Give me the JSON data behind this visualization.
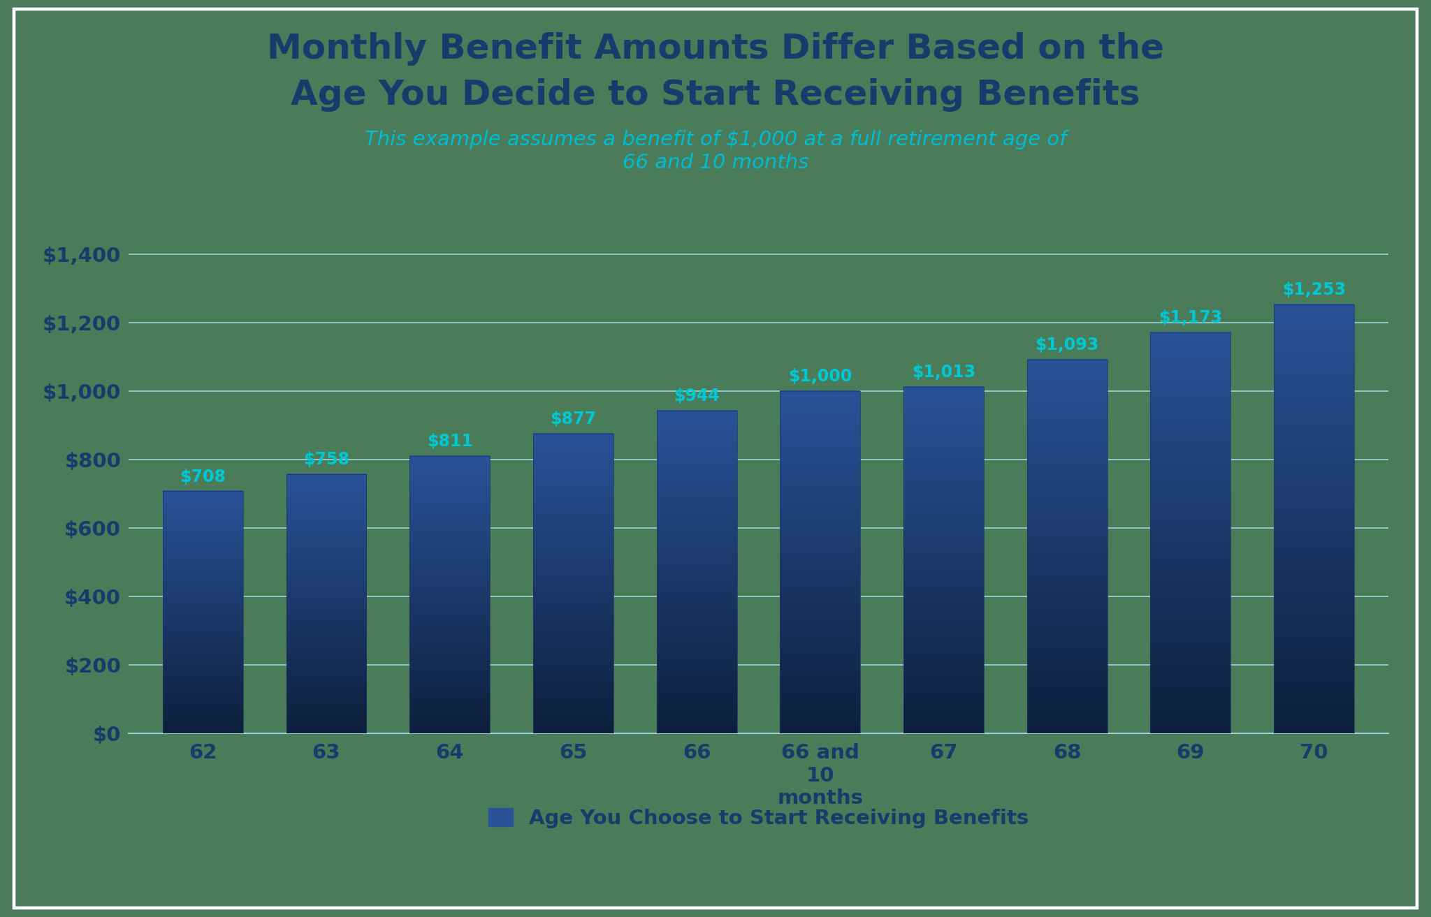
{
  "title_line1": "Monthly Benefit Amounts Differ Based on the",
  "title_line2": "Age You Decide to Start Receiving Benefits",
  "subtitle": "This example assumes a benefit of $1,000 at a full retirement age of\n66 and 10 months",
  "categories": [
    "62",
    "63",
    "64",
    "65",
    "66",
    "66 and\n10\nmonths",
    "67",
    "68",
    "69",
    "70"
  ],
  "values": [
    708,
    758,
    811,
    877,
    944,
    1000,
    1013,
    1093,
    1173,
    1253
  ],
  "bar_labels": [
    "$708",
    "$758",
    "$811",
    "$877",
    "$944",
    "$1,000",
    "$1,013",
    "$1,093",
    "$1,173",
    "$1,253"
  ],
  "bar_color_top": "#2a5298",
  "bar_color_bottom": "#0d1f3c",
  "bar_label_color": "#00c8d4",
  "title_color": "#1a3a6b",
  "subtitle_color": "#00bcd4",
  "ytick_color": "#1a3a6b",
  "xtick_color": "#1a3a6b",
  "background_color": "#4a7c59",
  "chart_bg_color": "#4a7c59",
  "grid_color": "#a0d4dc",
  "legend_label": "Age You Choose to Start Receiving Benefits",
  "legend_color": "#1a3a6b",
  "ylim": [
    0,
    1500
  ],
  "yticks": [
    0,
    200,
    400,
    600,
    800,
    1000,
    1200,
    1400
  ],
  "ytick_labels": [
    "$0",
    "$200",
    "$400",
    "$600",
    "$800",
    "$1,000",
    "$1,200",
    "$1,400"
  ],
  "border_color": "#ffffff"
}
